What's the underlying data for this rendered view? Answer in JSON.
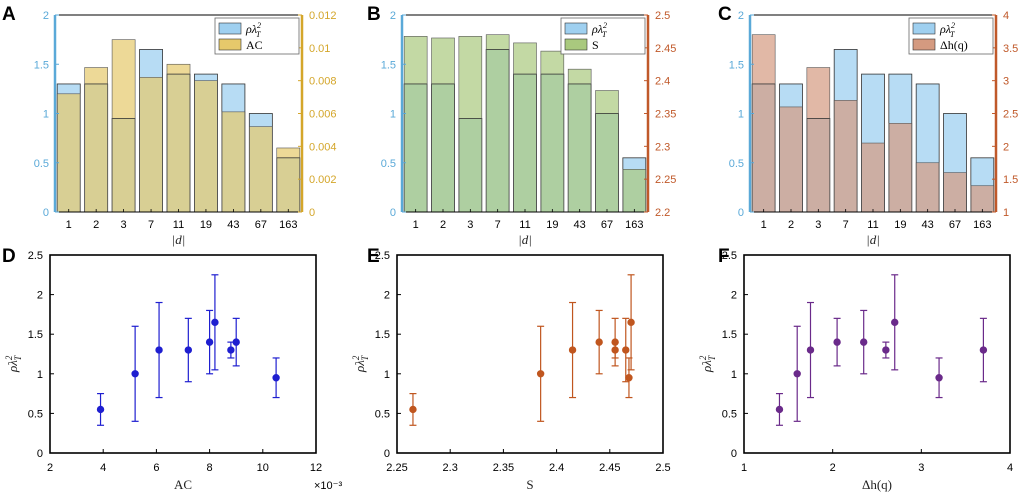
{
  "chart_data": [
    {
      "panel": "A",
      "type": "bar",
      "categories": [
        "1",
        "2",
        "3",
        "7",
        "11",
        "19",
        "43",
        "67",
        "163"
      ],
      "xlabel": "|d|",
      "series": [
        {
          "name": "ρλ_T^2",
          "axis": "left",
          "color": "#9fd0f0",
          "values": [
            1.3,
            1.3,
            0.95,
            1.65,
            1.4,
            1.4,
            1.3,
            1.0,
            0.55
          ]
        },
        {
          "name": "AC",
          "axis": "right",
          "color": "#e6c96b",
          "values": [
            0.0072,
            0.0088,
            0.0105,
            0.0082,
            0.009,
            0.008,
            0.0061,
            0.0052,
            0.0039
          ]
        }
      ],
      "left_axis": {
        "ylim": [
          0,
          2
        ],
        "ticks": [
          "0",
          "0.5",
          "1",
          "1.5",
          "2"
        ],
        "color": "#5aa9d8"
      },
      "right_axis": {
        "ylim": [
          0,
          0.012
        ],
        "ticks": [
          "0",
          "0.002",
          "0.004",
          "0.006",
          "0.008",
          "0.01",
          "0.012"
        ],
        "color": "#d4a62a"
      },
      "legend": [
        "ρλ",
        "AC"
      ]
    },
    {
      "panel": "B",
      "type": "bar",
      "categories": [
        "1",
        "2",
        "3",
        "7",
        "11",
        "19",
        "43",
        "67",
        "163"
      ],
      "xlabel": "|d|",
      "series": [
        {
          "name": "ρλ_T^2",
          "axis": "left",
          "color": "#9fd0f0",
          "values": [
            1.3,
            1.3,
            0.95,
            1.65,
            1.4,
            1.4,
            1.3,
            1.0,
            0.55
          ]
        },
        {
          "name": "S",
          "axis": "right",
          "color": "#a9c97e",
          "values": [
            2.4675,
            2.465,
            2.4675,
            2.47,
            2.4575,
            2.445,
            2.4175,
            2.385,
            2.265
          ]
        }
      ],
      "left_axis": {
        "ylim": [
          0,
          2
        ],
        "ticks": [
          "0",
          "0.5",
          "1",
          "1.5",
          "2"
        ],
        "color": "#5aa9d8"
      },
      "right_axis": {
        "ylim": [
          2.2,
          2.5
        ],
        "ticks": [
          "2.2",
          "2.25",
          "2.3",
          "2.35",
          "2.4",
          "2.45",
          "2.5"
        ],
        "color": "#c0592a"
      },
      "legend": [
        "ρλ",
        "S"
      ]
    },
    {
      "panel": "C",
      "type": "bar",
      "categories": [
        "1",
        "2",
        "3",
        "7",
        "11",
        "19",
        "43",
        "67",
        "163"
      ],
      "xlabel": "|d|",
      "series": [
        {
          "name": "ρλ_T^2",
          "axis": "left",
          "color": "#9fd0f0",
          "values": [
            1.3,
            1.3,
            0.95,
            1.65,
            1.4,
            1.4,
            1.3,
            1.0,
            0.55
          ]
        },
        {
          "name": "Δh(q)",
          "axis": "right",
          "color": "#d49a80",
          "values": [
            3.7,
            2.6,
            3.2,
            2.7,
            2.05,
            2.35,
            1.75,
            1.6,
            1.4
          ]
        }
      ],
      "left_axis": {
        "ylim": [
          0,
          2
        ],
        "ticks": [
          "0",
          "0.5",
          "1",
          "1.5",
          "2"
        ],
        "color": "#5aa9d8"
      },
      "right_axis": {
        "ylim": [
          1,
          4
        ],
        "ticks": [
          "1",
          "1.5",
          "2",
          "2.5",
          "3",
          "3.5",
          "4"
        ],
        "color": "#c0592a"
      },
      "legend": [
        "ρλ",
        "Δh(q)"
      ]
    },
    {
      "panel": "D",
      "type": "scatter",
      "color": "#1f1fd0",
      "xlabel": "AC",
      "ylabel": "ρλ",
      "xlim": [
        2,
        12
      ],
      "ylim": [
        0,
        2.5
      ],
      "xticks": [
        "2",
        "4",
        "6",
        "8",
        "10",
        "12"
      ],
      "yticks": [
        "0",
        "0.5",
        "1",
        "1.5",
        "2",
        "2.5"
      ],
      "exponent": "×10⁻³",
      "points": [
        {
          "x": 3.9,
          "y": 0.55,
          "err": 0.2
        },
        {
          "x": 5.2,
          "y": 1.0,
          "err": 0.6
        },
        {
          "x": 6.1,
          "y": 1.3,
          "err": 0.6
        },
        {
          "x": 7.2,
          "y": 1.3,
          "err": 0.4
        },
        {
          "x": 8.0,
          "y": 1.4,
          "err": 0.4
        },
        {
          "x": 8.2,
          "y": 1.65,
          "err": 0.6
        },
        {
          "x": 8.8,
          "y": 1.3,
          "err": 0.1
        },
        {
          "x": 9.0,
          "y": 1.4,
          "err": 0.3
        },
        {
          "x": 10.5,
          "y": 0.95,
          "err": 0.25
        }
      ]
    },
    {
      "panel": "E",
      "type": "scatter",
      "color": "#c0561f",
      "xlabel": "S",
      "ylabel": "ρλ",
      "xlim": [
        2.25,
        2.5
      ],
      "ylim": [
        0,
        2.5
      ],
      "xticks": [
        "2.25",
        "2.3",
        "2.35",
        "2.4",
        "2.45",
        "2.5"
      ],
      "yticks": [
        "0",
        "0.5",
        "1",
        "1.5",
        "2",
        "2.5"
      ],
      "points": [
        {
          "x": 2.265,
          "y": 0.55,
          "err": 0.2
        },
        {
          "x": 2.385,
          "y": 1.0,
          "err": 0.6
        },
        {
          "x": 2.415,
          "y": 1.3,
          "err": 0.6
        },
        {
          "x": 2.44,
          "y": 1.4,
          "err": 0.4
        },
        {
          "x": 2.455,
          "y": 1.3,
          "err": 0.1
        },
        {
          "x": 2.455,
          "y": 1.4,
          "err": 0.3
        },
        {
          "x": 2.465,
          "y": 1.3,
          "err": 0.4
        },
        {
          "x": 2.468,
          "y": 0.95,
          "err": 0.25
        },
        {
          "x": 2.47,
          "y": 1.65,
          "err": 0.6
        }
      ]
    },
    {
      "panel": "F",
      "type": "scatter",
      "color": "#6a2a8a",
      "xlabel": "Δh(q)",
      "ylabel": "ρλ",
      "xlim": [
        1,
        4
      ],
      "ylim": [
        0,
        2.5
      ],
      "xticks": [
        "1",
        "2",
        "3",
        "4"
      ],
      "yticks": [
        "0",
        "0.5",
        "1",
        "1.5",
        "2",
        "2.5"
      ],
      "points": [
        {
          "x": 1.4,
          "y": 0.55,
          "err": 0.2
        },
        {
          "x": 1.6,
          "y": 1.0,
          "err": 0.6
        },
        {
          "x": 1.75,
          "y": 1.3,
          "err": 0.6
        },
        {
          "x": 2.05,
          "y": 1.4,
          "err": 0.3
        },
        {
          "x": 2.35,
          "y": 1.4,
          "err": 0.4
        },
        {
          "x": 2.6,
          "y": 1.3,
          "err": 0.1
        },
        {
          "x": 2.7,
          "y": 1.65,
          "err": 0.6
        },
        {
          "x": 3.2,
          "y": 0.95,
          "err": 0.25
        },
        {
          "x": 3.7,
          "y": 1.3,
          "err": 0.4
        }
      ]
    }
  ]
}
